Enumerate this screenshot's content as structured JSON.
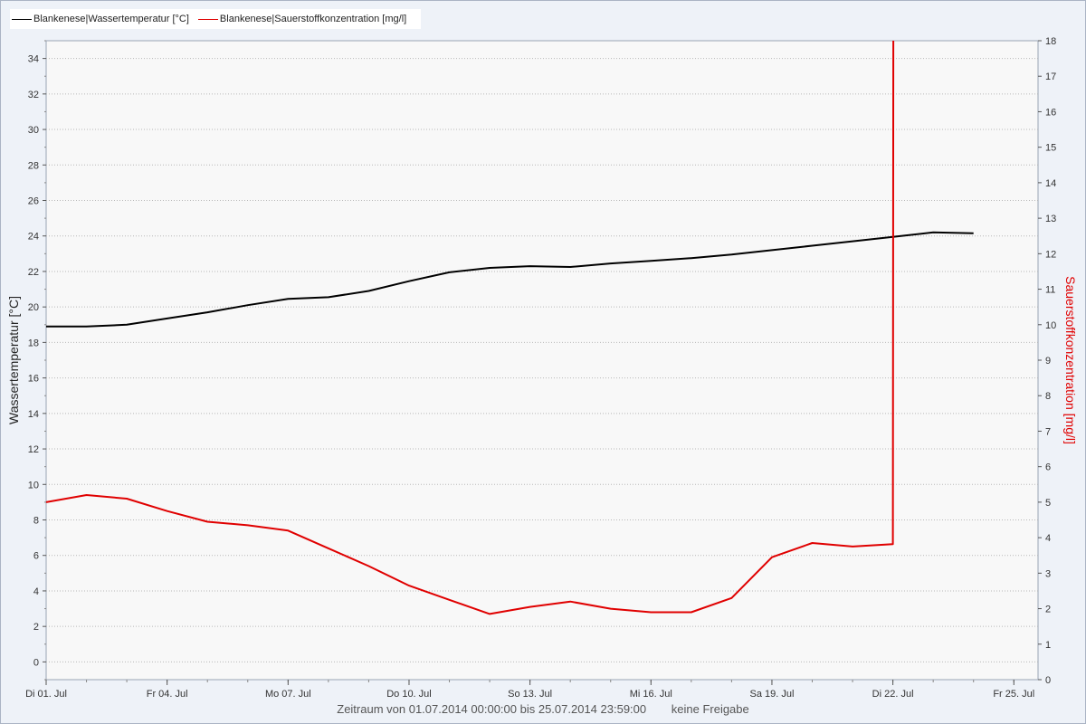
{
  "legend": {
    "series1": "Blankenese|Wassertemperatur [°C]",
    "series2": "Blankenese|Sauerstoffkonzentration [mg/l]"
  },
  "footer": {
    "zeitraum": "Zeitraum von 01.07.2014 00:00:00 bis 25.07.2014 23:59:00",
    "freigabe": "keine Freigabe"
  },
  "chart_data": {
    "type": "line",
    "title": "",
    "xlabel": "",
    "ylabel": "Wassertemperatur [°C]",
    "y2label": "Sauerstoffkonzentration [mg/l]",
    "xlim": [
      1,
      25.6
    ],
    "ylim": [
      -1,
      35
    ],
    "y2lim": [
      0,
      18
    ],
    "x_ticks": [
      {
        "day": 1,
        "label": "Di 01. Jul"
      },
      {
        "day": 4,
        "label": "Fr 04. Jul"
      },
      {
        "day": 7,
        "label": "Mo 07. Jul"
      },
      {
        "day": 10,
        "label": "Do 10. Jul"
      },
      {
        "day": 13,
        "label": "So 13. Jul"
      },
      {
        "day": 16,
        "label": "Mi 16. Jul"
      },
      {
        "day": 19,
        "label": "Sa 19. Jul"
      },
      {
        "day": 22,
        "label": "Di 22. Jul"
      },
      {
        "day": 25,
        "label": "Fr 25. Jul"
      }
    ],
    "y_ticks": [
      0,
      2,
      4,
      6,
      8,
      10,
      12,
      14,
      16,
      18,
      20,
      22,
      24,
      26,
      28,
      30,
      32,
      34
    ],
    "y2_ticks": [
      0,
      1,
      2,
      3,
      4,
      5,
      6,
      7,
      8,
      9,
      10,
      11,
      12,
      13,
      14,
      15,
      16,
      17,
      18
    ],
    "grid": true,
    "legend_position": "top-left",
    "series": [
      {
        "name": "Blankenese|Wassertemperatur [°C]",
        "axis": "left",
        "color": "#000000",
        "points": [
          [
            1,
            18.9
          ],
          [
            2,
            18.9
          ],
          [
            3,
            19.0
          ],
          [
            4,
            19.35
          ],
          [
            5,
            19.7
          ],
          [
            6,
            20.1
          ],
          [
            7,
            20.45
          ],
          [
            8,
            20.55
          ],
          [
            9,
            20.9
          ],
          [
            10,
            21.45
          ],
          [
            11,
            21.95
          ],
          [
            12,
            22.2
          ],
          [
            13,
            22.3
          ],
          [
            14,
            22.25
          ],
          [
            15,
            22.45
          ],
          [
            16,
            22.6
          ],
          [
            17,
            22.75
          ],
          [
            18,
            22.95
          ],
          [
            19,
            23.2
          ],
          [
            20,
            23.45
          ],
          [
            21,
            23.7
          ],
          [
            22,
            23.95
          ],
          [
            23,
            24.2
          ],
          [
            24,
            24.15
          ]
        ]
      },
      {
        "name": "Blankenese|Sauerstoffkonzentration [mg/l]",
        "axis": "right",
        "color": "#e00000",
        "points": [
          [
            1,
            5.0
          ],
          [
            2,
            5.2
          ],
          [
            3,
            5.1
          ],
          [
            4,
            4.75
          ],
          [
            5,
            4.45
          ],
          [
            6,
            4.35
          ],
          [
            7,
            4.2
          ],
          [
            8,
            3.7
          ],
          [
            9,
            3.2
          ],
          [
            10,
            2.65
          ],
          [
            11,
            2.25
          ],
          [
            12,
            1.85
          ],
          [
            13,
            2.05
          ],
          [
            14,
            2.2
          ],
          [
            15,
            2.0
          ],
          [
            16,
            1.9
          ],
          [
            17,
            1.9
          ],
          [
            18,
            2.3
          ],
          [
            19,
            3.45
          ],
          [
            20,
            3.85
          ],
          [
            21,
            3.75
          ],
          [
            22,
            3.82
          ],
          [
            22.01,
            18.0
          ]
        ]
      }
    ]
  }
}
